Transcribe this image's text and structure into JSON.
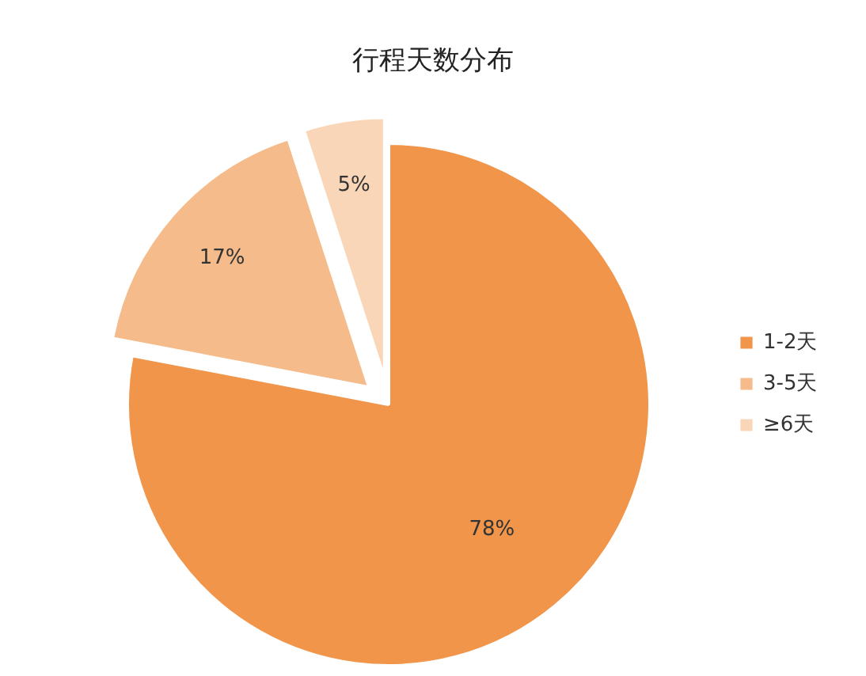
{
  "chart_data": {
    "type": "pie",
    "title": "行程天数分布",
    "categories": [
      "1-2天",
      "3-5天",
      "≥6天"
    ],
    "values": [
      78,
      17,
      5
    ],
    "colors": [
      "#f0954a",
      "#f5bb8a",
      "#f9d6b8"
    ],
    "value_labels": [
      "78%",
      "17%",
      "5%"
    ],
    "legend": "right"
  }
}
